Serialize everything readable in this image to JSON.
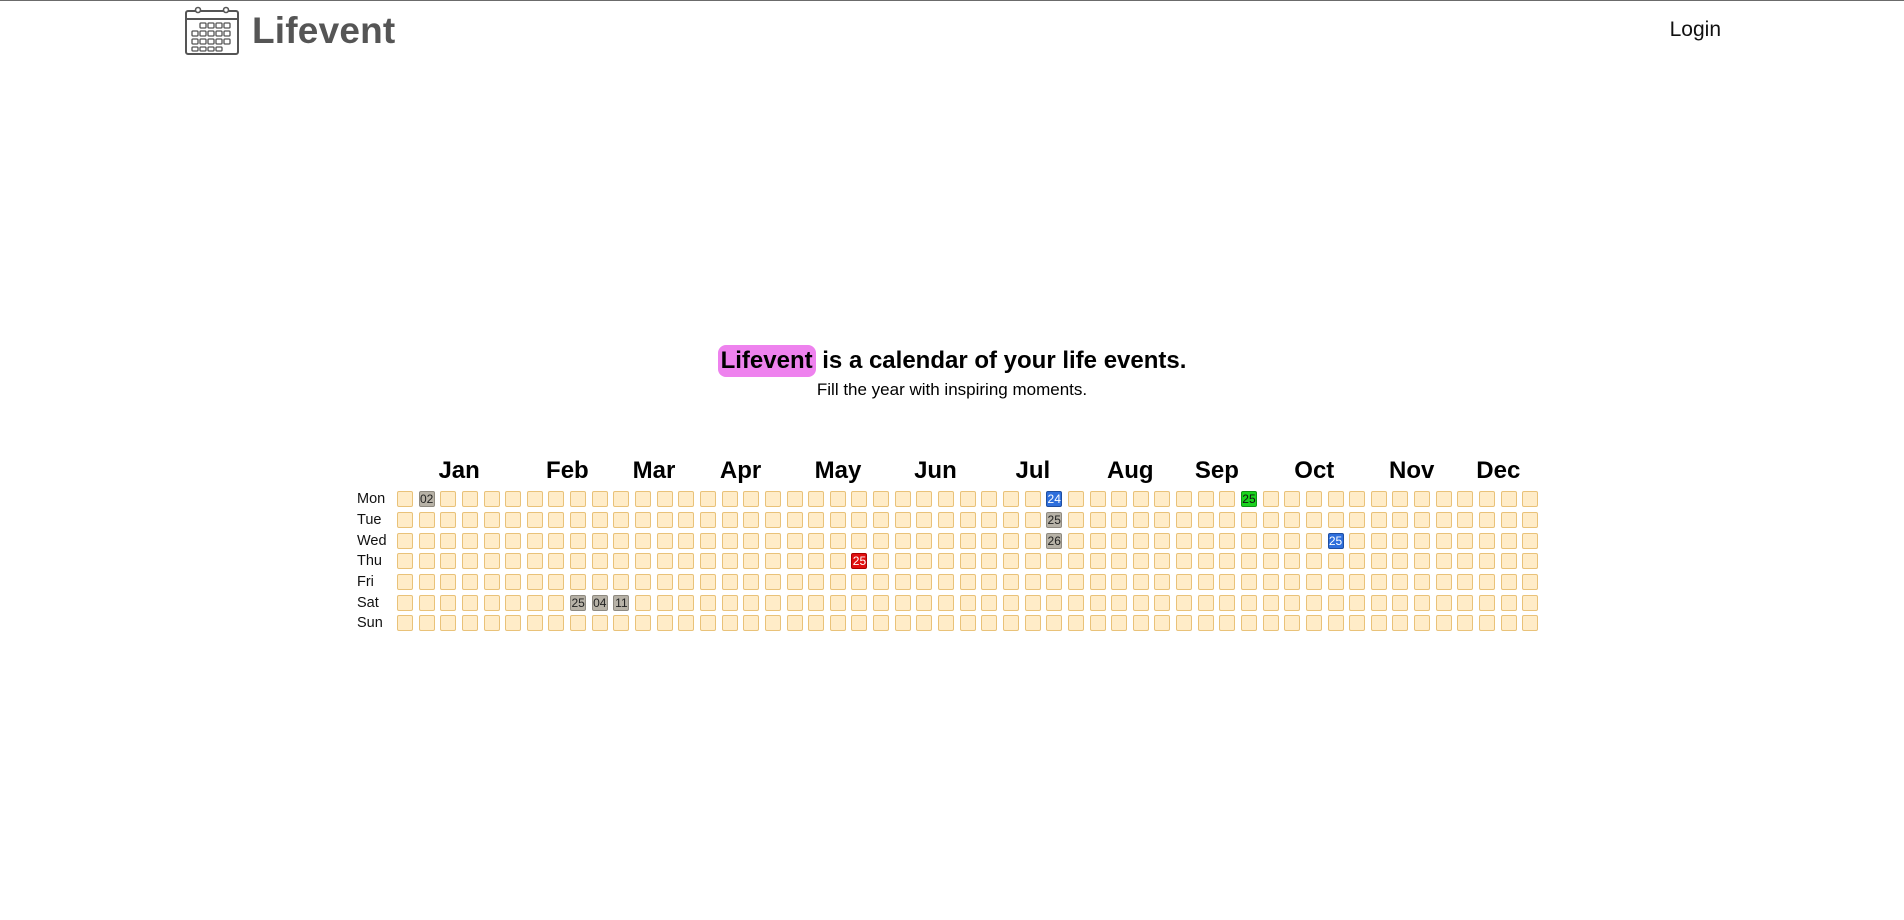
{
  "header": {
    "logo_text": "Lifevent",
    "login_label": "Login"
  },
  "hero": {
    "brand": "Lifevent",
    "tagline_rest": " is a calendar of your life events.",
    "subtitle": "Fill the year with inspiring moments.",
    "brand_highlight_color": "#ee82ee"
  },
  "calendar": {
    "months": [
      "Jan",
      "Feb",
      "Mar",
      "Apr",
      "May",
      "Jun",
      "Jul",
      "Aug",
      "Sep",
      "Oct",
      "Nov",
      "Dec"
    ],
    "days": [
      "Mon",
      "Tue",
      "Wed",
      "Thu",
      "Fri",
      "Sat",
      "Sun"
    ],
    "week_count": 53,
    "empty_color": "#ffecc8",
    "events": [
      {
        "day": 0,
        "week": 1,
        "label": "02",
        "color": "gray"
      },
      {
        "day": 0,
        "week": 30,
        "label": "24",
        "color": "blue"
      },
      {
        "day": 0,
        "week": 39,
        "label": "25",
        "color": "green"
      },
      {
        "day": 1,
        "week": 30,
        "label": "25",
        "color": "gray"
      },
      {
        "day": 2,
        "week": 30,
        "label": "26",
        "color": "gray"
      },
      {
        "day": 2,
        "week": 43,
        "label": "25",
        "color": "blue"
      },
      {
        "day": 3,
        "week": 21,
        "label": "25",
        "color": "red"
      },
      {
        "day": 5,
        "week": 8,
        "label": "25",
        "color": "gray"
      },
      {
        "day": 5,
        "week": 9,
        "label": "04",
        "color": "gray"
      },
      {
        "day": 5,
        "week": 10,
        "label": "11",
        "color": "gray"
      }
    ]
  }
}
